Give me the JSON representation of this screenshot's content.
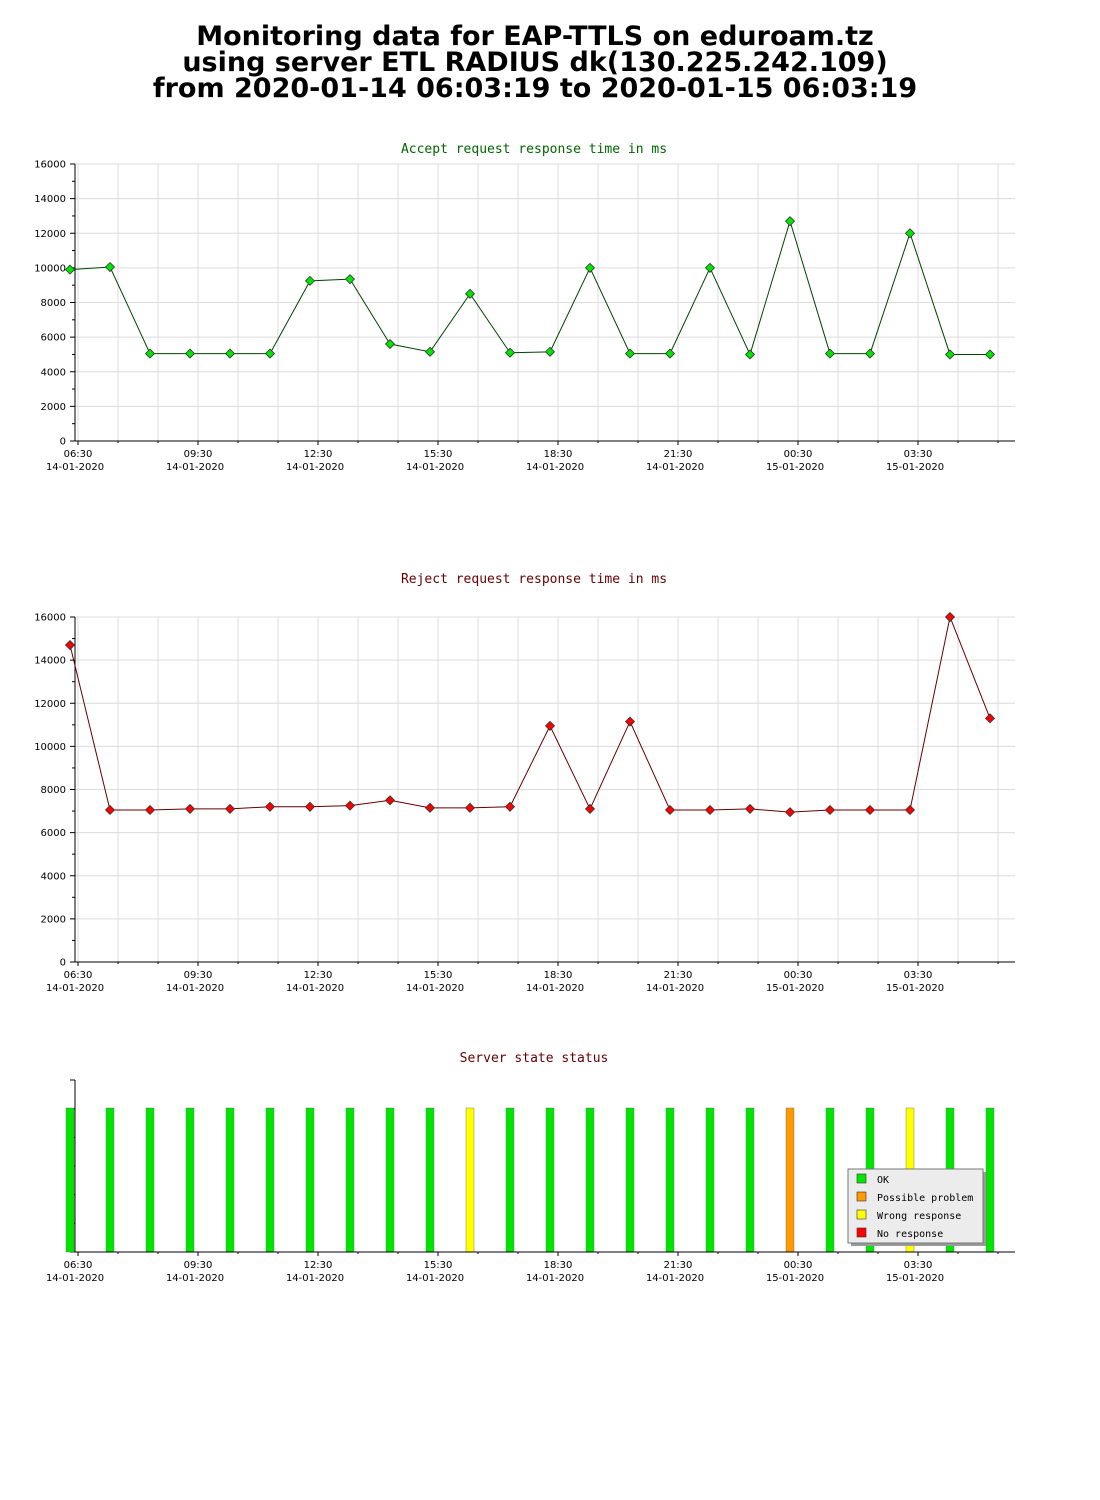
{
  "header": {
    "line1": "Monitoring data for EAP-TTLS on eduroam.tz",
    "line2": "using server ETL RADIUS dk(130.225.242.109)",
    "line3": "from 2020-01-14 06:03:19 to 2020-01-15 06:03:19"
  },
  "x_ticks": [
    {
      "time": "06:30",
      "date": "14-01-2020"
    },
    {
      "time": "09:30",
      "date": "14-01-2020"
    },
    {
      "time": "12:30",
      "date": "14-01-2020"
    },
    {
      "time": "15:30",
      "date": "14-01-2020"
    },
    {
      "time": "18:30",
      "date": "14-01-2020"
    },
    {
      "time": "21:30",
      "date": "14-01-2020"
    },
    {
      "time": "00:30",
      "date": "15-01-2020"
    },
    {
      "time": "03:30",
      "date": "15-01-2020"
    }
  ],
  "chart_data": [
    {
      "type": "line",
      "title": "Accept request response time in ms",
      "title_color": "#006600",
      "ylim": [
        0,
        16000
      ],
      "y_ticks": [
        "0",
        "2000",
        "4000",
        "6000",
        "8000",
        "10000",
        "12000",
        "14000",
        "16000"
      ],
      "xlim": [
        "2020-01-14 06:03",
        "2020-01-15 06:03"
      ],
      "grid": true,
      "x": [
        "06:18",
        "07:18",
        "08:18",
        "09:18",
        "10:18",
        "11:18",
        "12:18",
        "13:18",
        "14:18",
        "15:18",
        "16:18",
        "17:18",
        "18:18",
        "19:18",
        "20:18",
        "21:18",
        "22:18",
        "23:18",
        "00:18",
        "01:18",
        "02:18",
        "03:18",
        "04:18",
        "05:18"
      ],
      "values": [
        9900,
        10050,
        5050,
        5050,
        5050,
        5050,
        9250,
        9350,
        5600,
        5150,
        8500,
        5100,
        5150,
        10000,
        5050,
        5050,
        10000,
        5000,
        12700,
        5050,
        5050,
        12000,
        5000,
        5000
      ],
      "line_color": "#004400",
      "marker_color": "#00e600"
    },
    {
      "type": "line",
      "title": "Reject request response time in ms",
      "title_color": "#660000",
      "ylim": [
        0,
        16000
      ],
      "y_ticks": [
        "0",
        "2000",
        "4000",
        "6000",
        "8000",
        "10000",
        "12000",
        "14000",
        "16000"
      ],
      "xlim": [
        "2020-01-14 06:03",
        "2020-01-15 06:03"
      ],
      "grid": true,
      "x": [
        "06:18",
        "07:18",
        "08:18",
        "09:18",
        "10:18",
        "11:18",
        "12:18",
        "13:18",
        "14:18",
        "15:18",
        "16:18",
        "17:18",
        "18:18",
        "19:18",
        "20:18",
        "21:18",
        "22:18",
        "23:18",
        "00:18",
        "01:18",
        "02:18",
        "03:18",
        "04:18",
        "05:18"
      ],
      "values": [
        14700,
        7050,
        7050,
        7100,
        7100,
        7200,
        7200,
        7250,
        7500,
        7150,
        7150,
        7200,
        10950,
        7100,
        11150,
        7050,
        7050,
        7100,
        6950,
        7050,
        7050,
        7050,
        16000,
        11300
      ],
      "line_color": "#660000",
      "marker_color": "#ff0000"
    },
    {
      "type": "bar",
      "title": "Server state status",
      "title_color": "#660000",
      "xlim": [
        "2020-01-14 06:03",
        "2020-01-15 06:03"
      ],
      "grid": false,
      "legend_position": "bottom-right",
      "legend": [
        {
          "label": "OK",
          "color": "#00e600"
        },
        {
          "label": "Possible problem",
          "color": "#ff9900"
        },
        {
          "label": "Wrong response",
          "color": "#ffff00"
        },
        {
          "label": "No response",
          "color": "#ff0000"
        }
      ],
      "x": [
        "06:18",
        "07:18",
        "08:18",
        "09:18",
        "10:18",
        "11:18",
        "12:18",
        "13:18",
        "14:18",
        "15:18",
        "16:18",
        "17:18",
        "18:18",
        "19:18",
        "20:18",
        "21:18",
        "22:18",
        "23:18",
        "00:18",
        "01:18",
        "02:18",
        "03:18",
        "04:18",
        "05:18"
      ],
      "states": [
        "OK",
        "OK",
        "OK",
        "OK",
        "OK",
        "OK",
        "OK",
        "OK",
        "OK",
        "OK",
        "Wrong response",
        "OK",
        "OK",
        "OK",
        "OK",
        "OK",
        "OK",
        "OK",
        "Possible problem",
        "OK",
        "OK",
        "Wrong response",
        "OK",
        "OK"
      ]
    }
  ]
}
